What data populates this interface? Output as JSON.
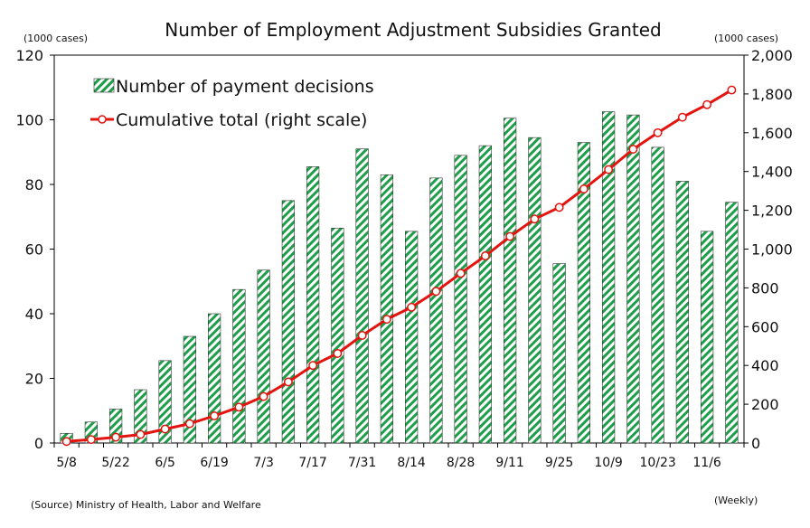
{
  "chart_data": {
    "type": "bar+line",
    "title": "Number of Employment Adjustment Subsidies Granted",
    "left_unit": "(1000 cases)",
    "right_unit": "(1000 cases)",
    "left_ylim": [
      0,
      120
    ],
    "left_ticks": [
      "0",
      "20",
      "40",
      "60",
      "80",
      "100",
      "120"
    ],
    "right_ylim": [
      0,
      2000
    ],
    "right_ticks": [
      "0",
      "200",
      "400",
      "600",
      "800",
      "1,000",
      "1,200",
      "1,400",
      "1,600",
      "1,800",
      "2,000"
    ],
    "x_tick_labels": [
      "5/8",
      "5/22",
      "6/5",
      "6/19",
      "7/3",
      "7/17",
      "7/31",
      "8/14",
      "8/28",
      "9/11",
      "9/25",
      "10/9",
      "10/23",
      "11/6"
    ],
    "categories": [
      "5/8",
      "5/15",
      "5/22",
      "5/29",
      "6/5",
      "6/12",
      "6/19",
      "6/26",
      "7/3",
      "7/10",
      "7/17",
      "7/24",
      "7/31",
      "8/7",
      "8/14",
      "8/21",
      "8/28",
      "9/4",
      "9/11",
      "9/18",
      "9/25",
      "10/2",
      "10/9",
      "10/16",
      "10/23",
      "10/30",
      "11/6",
      "11/13"
    ],
    "series": [
      {
        "name": "Number of payment decisions",
        "axis": "left",
        "type": "bar",
        "values": [
          3,
          6.5,
          10.5,
          16.5,
          25.5,
          33,
          40,
          47.5,
          53.5,
          75,
          85.5,
          66.5,
          91,
          83,
          65.5,
          82,
          89,
          92,
          100.5,
          94.5,
          55.5,
          93,
          102.5,
          101.5,
          91.5,
          81,
          65.5,
          74.5
        ]
      },
      {
        "name": "Cumulative total (right scale)",
        "axis": "right",
        "type": "line",
        "values": [
          8,
          18,
          30,
          44,
          72,
          100,
          140,
          185,
          240,
          315,
          400,
          462,
          555,
          638,
          700,
          782,
          875,
          965,
          1065,
          1155,
          1215,
          1310,
          1410,
          1515,
          1600,
          1680,
          1745,
          1820
        ]
      }
    ],
    "colors": {
      "bar_green": "#1e9e4a",
      "line_red": "#e3140f"
    },
    "legend_placement": "top-left",
    "grid": false
  },
  "footer": {
    "source": "(Source) Ministry of Health, Labor and Welfare",
    "period": "(Weekly)"
  }
}
